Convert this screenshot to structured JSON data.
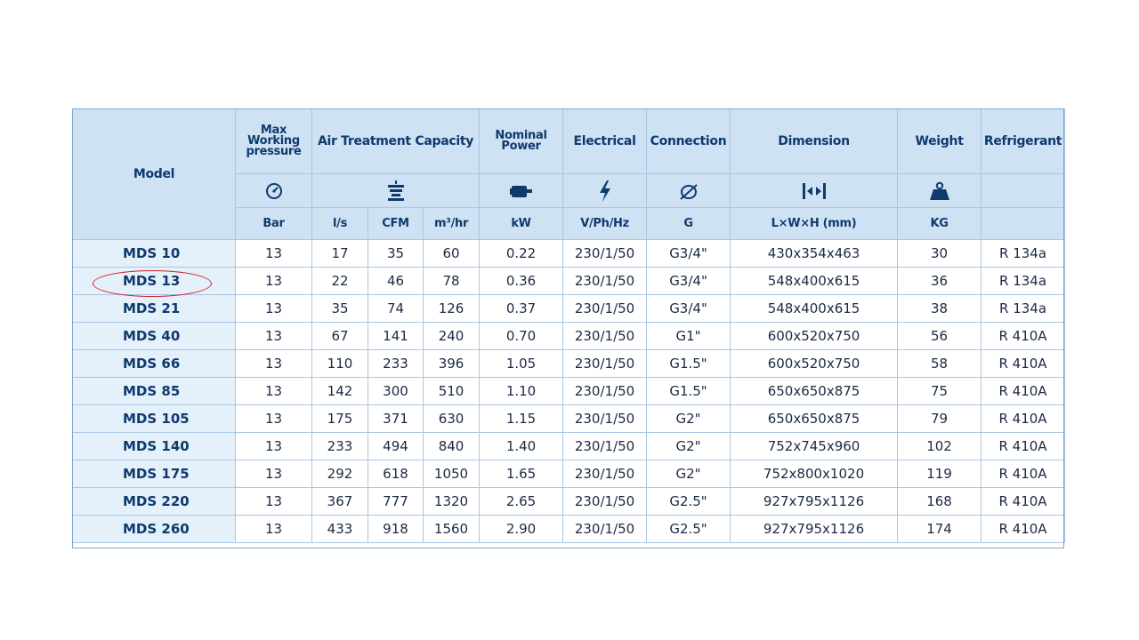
{
  "table": {
    "headers": {
      "model": "Model",
      "pressure": [
        "Max",
        "Working",
        "pressure"
      ],
      "capacity": "Air Treatment Capacity",
      "power": [
        "Nominal",
        "Power"
      ],
      "electrical": "Electrical",
      "connection": "Connection",
      "dimension": "Dimension",
      "weight": "Weight",
      "refrigerant": "Refrigerant"
    },
    "icons": [
      "gauge-icon",
      "filter-icon",
      "motor-icon",
      "lightning-icon",
      "thread-icon",
      "dimension-arrows-icon",
      "weight-icon"
    ],
    "units": [
      "Bar",
      "l/s",
      "CFM",
      "m³/hr",
      "kW",
      "V/Ph/Hz",
      "G",
      "L×W×H (mm)",
      "KG"
    ],
    "rows": [
      [
        "MDS 10",
        "13",
        "17",
        "35",
        "60",
        "0.22",
        "230/1/50",
        "G3/4\"",
        "430x354x463",
        "30",
        "R 134a"
      ],
      [
        "MDS 13",
        "13",
        "22",
        "46",
        "78",
        "0.36",
        "230/1/50",
        "G3/4\"",
        "548x400x615",
        "36",
        "R 134a"
      ],
      [
        "MDS 21",
        "13",
        "35",
        "74",
        "126",
        "0.37",
        "230/1/50",
        "G3/4\"",
        "548x400x615",
        "38",
        "R 134a"
      ],
      [
        "MDS 40",
        "13",
        "67",
        "141",
        "240",
        "0.70",
        "230/1/50",
        "G1\"",
        "600x520x750",
        "56",
        "R 410A"
      ],
      [
        "MDS 66",
        "13",
        "110",
        "233",
        "396",
        "1.05",
        "230/1/50",
        "G1.5\"",
        "600x520x750",
        "58",
        "R 410A"
      ],
      [
        "MDS 85",
        "13",
        "142",
        "300",
        "510",
        "1.10",
        "230/1/50",
        "G1.5\"",
        "650x650x875",
        "75",
        "R 410A"
      ],
      [
        "MDS 105",
        "13",
        "175",
        "371",
        "630",
        "1.15",
        "230/1/50",
        "G2\"",
        "650x650x875",
        "79",
        "R 410A"
      ],
      [
        "MDS 140",
        "13",
        "233",
        "494",
        "840",
        "1.40",
        "230/1/50",
        "G2\"",
        "752x745x960",
        "102",
        "R 410A"
      ],
      [
        "MDS 175",
        "13",
        "292",
        "618",
        "1050",
        "1.65",
        "230/1/50",
        "G2\"",
        "752x800x1020",
        "119",
        "R 410A"
      ],
      [
        "MDS 220",
        "13",
        "367",
        "777",
        "1320",
        "2.65",
        "230/1/50",
        "G2.5\"",
        "927x795x1126",
        "168",
        "R 410A"
      ],
      [
        "MDS 260",
        "13",
        "433",
        "918",
        "1560",
        "2.90",
        "230/1/50",
        "G2.5\"",
        "927x795x1126",
        "174",
        "R 410A"
      ]
    ],
    "highlighted_row": "MDS 13",
    "colors": {
      "header_bg": "#cfe2f4",
      "header_text": "#0e3a6d",
      "model_col_bg": "#e4f0fa",
      "grid_line": "#a9c6e3",
      "highlight_ellipse": "#d0202a"
    }
  }
}
